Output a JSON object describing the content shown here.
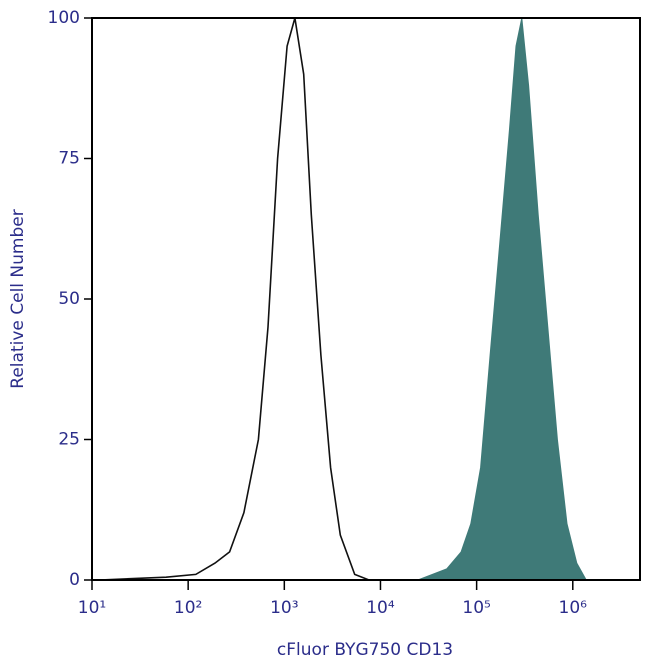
{
  "chart_data": {
    "type": "line",
    "x_label": "cFluor BYG750 CD13",
    "y_label": "Relative Cell Number",
    "xscale": "log",
    "xlim": [
      10,
      5000000
    ],
    "ylim": [
      0,
      100
    ],
    "xticks": [
      {
        "value": 10,
        "label": "10¹"
      },
      {
        "value": 100,
        "label": "10²"
      },
      {
        "value": 1000,
        "label": "10³"
      },
      {
        "value": 10000,
        "label": "10⁴"
      },
      {
        "value": 100000,
        "label": "10⁵"
      },
      {
        "value": 1000000,
        "label": "10⁶"
      }
    ],
    "yticks": [
      0,
      25,
      50,
      75,
      100
    ],
    "series": [
      {
        "color": "#111111",
        "fill": false,
        "x": [
          12,
          59,
          120,
          190,
          270,
          380,
          537,
          676,
          851,
          1070,
          1290,
          1590,
          1910,
          2400,
          3030,
          3820,
          5400,
          7600,
          19500
        ],
        "values": [
          0,
          0.5,
          1,
          3,
          5,
          12,
          25,
          45,
          75,
          95,
          100,
          90,
          65,
          40,
          20,
          8,
          1,
          0,
          0
        ]
      },
      {
        "color": "#3f7a78",
        "fill": true,
        "x": [
          24500,
          49000,
          69000,
          87000,
          110000,
          138000,
          174000,
          219000,
          257000,
          295000,
          347000,
          437000,
          550000,
          692000,
          871000,
          1100000,
          1380000
        ],
        "values": [
          0,
          2,
          5,
          10,
          20,
          40,
          60,
          80,
          95,
          100,
          88,
          65,
          45,
          25,
          10,
          3,
          0
        ]
      }
    ]
  }
}
